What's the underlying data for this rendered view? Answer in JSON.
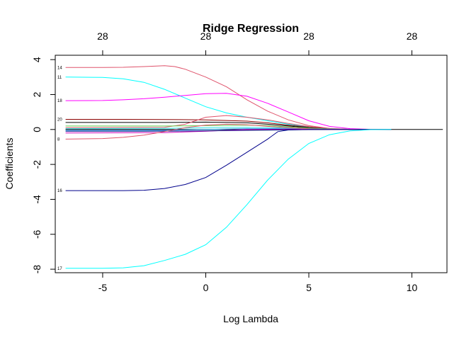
{
  "chart_data": {
    "type": "line",
    "title": "Ridge Regression",
    "xlabel": "Log Lambda",
    "ylabel": "Coefficients",
    "xlim": [
      -7.3,
      11.7
    ],
    "ylim": [
      -8.2,
      4.25
    ],
    "x_ticks": [
      -5,
      0,
      5,
      10
    ],
    "x_tick_labels": [
      "-5",
      "0",
      "5",
      "10"
    ],
    "y_ticks": [
      -8,
      -6,
      -4,
      -2,
      0,
      2,
      4
    ],
    "y_tick_labels": [
      "-8",
      "-6",
      "-4",
      "-2",
      "0",
      "2",
      "4"
    ],
    "top_axis_ticks": [
      -5,
      0,
      5,
      10
    ],
    "top_axis_labels": [
      "28",
      "28",
      "28",
      "28"
    ],
    "grid": false,
    "series": [
      {
        "name": "14",
        "color": "#DF536B",
        "values": [
          [
            -6.8,
            3.55
          ],
          [
            -5,
            3.55
          ],
          [
            -4,
            3.56
          ],
          [
            -3,
            3.6
          ],
          [
            -2,
            3.65
          ],
          [
            -1.5,
            3.6
          ],
          [
            -1,
            3.45
          ],
          [
            0,
            3.0
          ],
          [
            1,
            2.45
          ],
          [
            2,
            1.7
          ],
          [
            3,
            1.05
          ],
          [
            4,
            0.55
          ],
          [
            5,
            0.22
          ],
          [
            6,
            0.06
          ],
          [
            7,
            0.01
          ],
          [
            8,
            0.0
          ],
          [
            9,
            0.0
          ]
        ]
      },
      {
        "name": "11",
        "color": "#00FFFF",
        "values": [
          [
            -6.8,
            3.0
          ],
          [
            -5,
            2.98
          ],
          [
            -4,
            2.9
          ],
          [
            -3,
            2.7
          ],
          [
            -2,
            2.3
          ],
          [
            -1,
            1.8
          ],
          [
            0,
            1.3
          ],
          [
            1,
            0.95
          ],
          [
            2,
            0.7
          ],
          [
            3,
            0.5
          ],
          [
            4,
            0.3
          ],
          [
            5,
            0.15
          ],
          [
            6,
            0.05
          ],
          [
            7,
            0.01
          ],
          [
            8,
            0.0
          ],
          [
            9,
            0.0
          ]
        ]
      },
      {
        "name": "18",
        "color": "#FF00FF",
        "values": [
          [
            -6.8,
            1.65
          ],
          [
            -5,
            1.66
          ],
          [
            -4,
            1.7
          ],
          [
            -3,
            1.76
          ],
          [
            -2,
            1.85
          ],
          [
            -1,
            1.95
          ],
          [
            0,
            2.05
          ],
          [
            1,
            2.07
          ],
          [
            2,
            1.9
          ],
          [
            3,
            1.5
          ],
          [
            4,
            1.0
          ],
          [
            5,
            0.5
          ],
          [
            6,
            0.18
          ],
          [
            7,
            0.05
          ],
          [
            8,
            0.01
          ],
          [
            9,
            0.0
          ]
        ]
      },
      {
        "name": "20",
        "color": "#8B0000",
        "values": [
          [
            -6.8,
            0.58
          ],
          [
            -4,
            0.58
          ],
          [
            -2,
            0.57
          ],
          [
            0,
            0.55
          ],
          [
            2,
            0.48
          ],
          [
            3,
            0.38
          ],
          [
            4,
            0.25
          ],
          [
            5,
            0.12
          ],
          [
            6,
            0.04
          ],
          [
            7,
            0.01
          ],
          [
            8,
            0.0
          ],
          [
            9,
            0.0
          ]
        ]
      },
      {
        "name": "",
        "color": "#000000",
        "values": [
          [
            -6.8,
            0.4
          ],
          [
            -4,
            0.4
          ],
          [
            -2,
            0.4
          ],
          [
            0,
            0.42
          ],
          [
            2,
            0.38
          ],
          [
            3,
            0.3
          ],
          [
            4,
            0.2
          ],
          [
            5,
            0.1
          ],
          [
            6,
            0.03
          ],
          [
            7,
            0.01
          ],
          [
            8,
            0.0
          ]
        ]
      },
      {
        "name": "",
        "color": "#DF536B",
        "values": [
          [
            -6.8,
            0.1
          ],
          [
            -2,
            0.12
          ],
          [
            -1,
            0.3
          ],
          [
            0,
            0.7
          ],
          [
            1,
            0.8
          ],
          [
            2,
            0.7
          ],
          [
            3,
            0.55
          ],
          [
            4,
            0.35
          ],
          [
            5,
            0.17
          ],
          [
            6,
            0.06
          ],
          [
            7,
            0.01
          ],
          [
            8,
            0.0
          ]
        ]
      },
      {
        "name": "",
        "color": "#61D04F",
        "values": [
          [
            -6.8,
            0.2
          ],
          [
            -2,
            0.2
          ],
          [
            0,
            0.22
          ],
          [
            2,
            0.25
          ],
          [
            3,
            0.22
          ],
          [
            4,
            0.15
          ],
          [
            5,
            0.08
          ],
          [
            6,
            0.03
          ],
          [
            7,
            0.0
          ],
          [
            8,
            0.0
          ]
        ]
      },
      {
        "name": "",
        "color": "#2297E6",
        "values": [
          [
            -6.8,
            -0.05
          ],
          [
            -2,
            -0.05
          ],
          [
            0,
            0.0
          ],
          [
            2,
            0.05
          ],
          [
            4,
            0.05
          ],
          [
            6,
            0.01
          ],
          [
            8,
            0.0
          ]
        ]
      },
      {
        "name": "",
        "color": "#28E2E5",
        "values": [
          [
            -6.8,
            0.05
          ],
          [
            -2,
            0.06
          ],
          [
            0,
            0.1
          ],
          [
            2,
            0.12
          ],
          [
            4,
            0.08
          ],
          [
            6,
            0.02
          ],
          [
            8,
            0.0
          ]
        ]
      },
      {
        "name": "",
        "color": "#CD0BBC",
        "values": [
          [
            -6.8,
            -0.2
          ],
          [
            -2,
            -0.18
          ],
          [
            0,
            -0.1
          ],
          [
            2,
            0.0
          ],
          [
            4,
            0.02
          ],
          [
            6,
            0.01
          ],
          [
            8,
            0.0
          ]
        ]
      },
      {
        "name": "",
        "color": "#000080",
        "values": [
          [
            -6.8,
            -0.1
          ],
          [
            -3,
            -0.1
          ],
          [
            0,
            -0.08
          ],
          [
            2,
            -0.05
          ],
          [
            4,
            -0.02
          ],
          [
            6,
            0.0
          ],
          [
            8,
            0.0
          ]
        ]
      },
      {
        "name": "8",
        "color": "#DF536B",
        "values": [
          [
            -6.8,
            -0.55
          ],
          [
            -5,
            -0.52
          ],
          [
            -4,
            -0.45
          ],
          [
            -3,
            -0.32
          ],
          [
            -2,
            -0.12
          ],
          [
            -1,
            0.1
          ],
          [
            0,
            0.25
          ],
          [
            1,
            0.3
          ],
          [
            2,
            0.27
          ],
          [
            3,
            0.18
          ],
          [
            4,
            0.1
          ],
          [
            5,
            0.04
          ],
          [
            6,
            0.01
          ],
          [
            7,
            0.0
          ],
          [
            8,
            0.0
          ]
        ]
      },
      {
        "name": "16",
        "color": "#00008B",
        "values": [
          [
            -6.8,
            -3.5
          ],
          [
            -5,
            -3.5
          ],
          [
            -4,
            -3.5
          ],
          [
            -3,
            -3.48
          ],
          [
            -2,
            -3.38
          ],
          [
            -1,
            -3.15
          ],
          [
            0,
            -2.75
          ],
          [
            1,
            -2.05
          ],
          [
            2,
            -1.3
          ],
          [
            3,
            -0.55
          ],
          [
            3.5,
            -0.12
          ],
          [
            4,
            -0.03
          ],
          [
            5,
            0.0
          ],
          [
            6,
            0.0
          ],
          [
            7,
            0.0
          ],
          [
            8,
            0.0
          ],
          [
            9,
            0.0
          ]
        ]
      },
      {
        "name": "17",
        "color": "#00FFFF",
        "values": [
          [
            -6.8,
            -7.95
          ],
          [
            -5,
            -7.95
          ],
          [
            -4,
            -7.92
          ],
          [
            -3,
            -7.8
          ],
          [
            -2,
            -7.5
          ],
          [
            -1,
            -7.15
          ],
          [
            0,
            -6.6
          ],
          [
            1,
            -5.6
          ],
          [
            2,
            -4.3
          ],
          [
            3,
            -2.9
          ],
          [
            4,
            -1.7
          ],
          [
            5,
            -0.8
          ],
          [
            6,
            -0.3
          ],
          [
            7,
            -0.08
          ],
          [
            8,
            -0.01
          ],
          [
            9,
            0.0
          ]
        ]
      }
    ],
    "baseline": {
      "color": "#000000",
      "x_end": 11.5
    }
  }
}
